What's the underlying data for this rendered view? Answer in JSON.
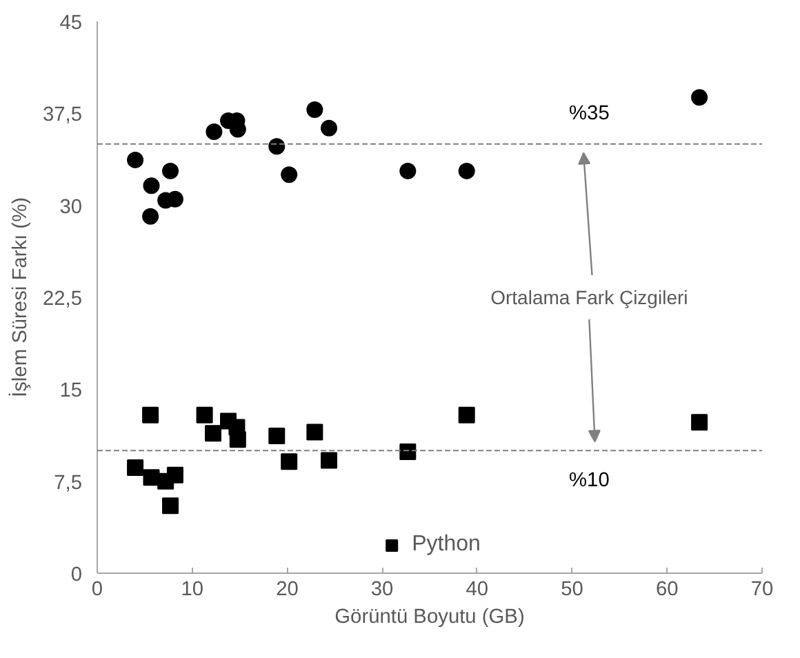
{
  "chart_data": {
    "type": "scatter",
    "xlabel": "Görüntü Boyutu (GB)",
    "ylabel": "İşlem Süresi Farkı (%)",
    "xlim": [
      0,
      70
    ],
    "xticks": [
      0,
      10,
      20,
      30,
      40,
      50,
      60,
      70
    ],
    "ylim": [
      0,
      45
    ],
    "yticks": [
      0,
      {
        "value": 7.5,
        "label": "7,5"
      },
      15,
      {
        "value": 22.5,
        "label": "22,5"
      },
      30,
      {
        "value": 37.5,
        "label": "37,5"
      },
      45
    ],
    "grid": false,
    "legend": "bottom",
    "series": [
      {
        "color": "#000000",
        "marker": "circle",
        "x": [
          4.0,
          5.7,
          5.6,
          7.2,
          8.2,
          7.7,
          12.3,
          13.8,
          14.7,
          14.8,
          18.9,
          20.2,
          22.9,
          24.4,
          32.7,
          38.9,
          63.4
        ],
        "values": [
          33.7,
          31.6,
          29.1,
          30.4,
          30.5,
          32.8,
          36.0,
          36.9,
          36.9,
          36.2,
          34.8,
          32.5,
          37.8,
          36.3,
          32.8,
          32.8,
          38.8
        ]
      },
      {
        "name": "Python",
        "color": "#000000",
        "marker": "square",
        "x": [
          4.0,
          5.6,
          5.7,
          7.2,
          8.2,
          7.7,
          11.3,
          12.2,
          13.8,
          14.7,
          14.8,
          18.9,
          20.2,
          22.9,
          24.4,
          32.7,
          38.9,
          63.4
        ],
        "values": [
          8.6,
          12.9,
          7.8,
          7.5,
          8.0,
          5.5,
          12.9,
          11.4,
          12.4,
          11.9,
          10.9,
          11.2,
          9.1,
          11.5,
          9.2,
          9.9,
          12.9,
          12.3
        ]
      }
    ],
    "ref_lines": [
      {
        "axis": "y",
        "value": 35,
        "label": "%35",
        "color": "#7f7f7f",
        "line_style": "dashed"
      },
      {
        "axis": "y",
        "value": 10,
        "label": "%10",
        "color": "#7f7f7f",
        "line_style": "dashed"
      }
    ],
    "annotations": [
      "Ortalama Fark Çizgileri"
    ]
  }
}
